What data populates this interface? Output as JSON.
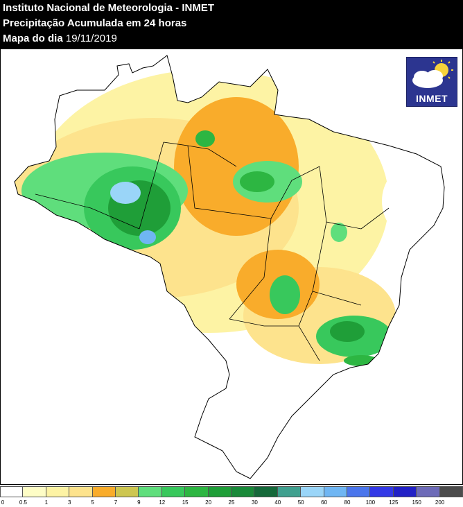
{
  "header": {
    "line1": "Instituto Nacional de Meteorologia - INMET",
    "line2": "Precipitação Acumulada em 24 horas",
    "line3_label": "Mapa do dia",
    "line3_date": "19/11/2019"
  },
  "logo": {
    "text": "INMET",
    "icon": "sun-cloud-icon"
  },
  "legend": {
    "colors": [
      "#ffffff",
      "#fefdc6",
      "#fdf3a4",
      "#fde38d",
      "#f9ac2b",
      "#cdc650",
      "#5fde7c",
      "#38c85c",
      "#2db642",
      "#1f9e38",
      "#198a39",
      "#15693a",
      "#40a08f",
      "#9ad5f8",
      "#6fb6f3",
      "#4b76ec",
      "#3339e6",
      "#2221c6",
      "#6d6bb8",
      "#4c4c4c"
    ],
    "ticks": [
      "0",
      "0.5",
      "1",
      "3",
      "5",
      "7",
      "9",
      "12",
      "15",
      "20",
      "25",
      "30",
      "40",
      "50",
      "60",
      "80",
      "100",
      "125",
      "150",
      "200"
    ]
  },
  "regions": [
    {
      "name": "north-amazon",
      "color": "#fdf3a4"
    },
    {
      "name": "amazon-wet-core",
      "color": "#2db642"
    },
    {
      "name": "southeast-rain",
      "color": "#38c85c"
    }
  ]
}
